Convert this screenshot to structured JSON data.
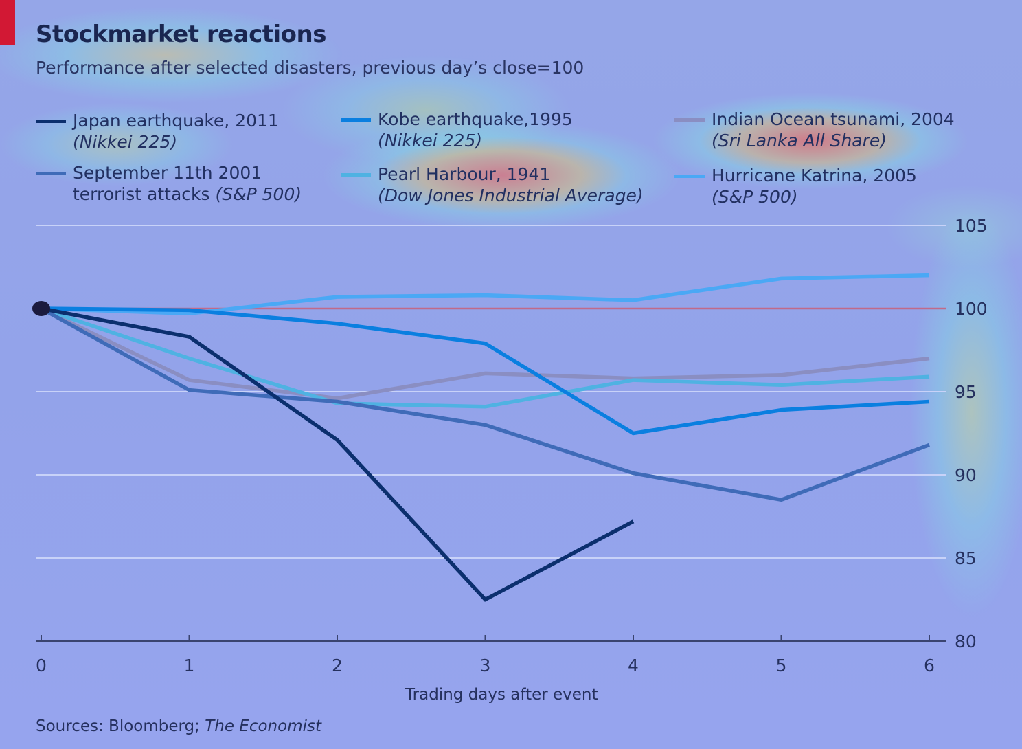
{
  "chart_data": {
    "type": "line",
    "title": "Stockmarket reactions",
    "subtitle": "Performance after selected disasters, previous day’s close=100",
    "xlabel": "Trading days after event",
    "ylabel": "",
    "x": [
      0,
      1,
      2,
      3,
      4,
      5,
      6
    ],
    "xlim": [
      0,
      6
    ],
    "ylim": [
      80,
      105
    ],
    "yticks": [
      80,
      85,
      90,
      95,
      100,
      105
    ],
    "baseline": 100,
    "grid": true,
    "y_axis_side": "right",
    "legend_placement": "top",
    "series": [
      {
        "name": "Japan earthquake, 2011",
        "index": "(Nikkei 225)",
        "color": "#0b2f6e",
        "values": [
          100,
          98.3,
          92.1,
          82.5,
          87.2,
          null,
          null
        ]
      },
      {
        "name": "Kobe earthquake,1995",
        "index": "(Nikkei 225)",
        "color": "#0a7fe0",
        "values": [
          100,
          99.9,
          99.1,
          97.9,
          92.5,
          93.9,
          94.4
        ]
      },
      {
        "name": "Indian Ocean tsunami, 2004",
        "index": "(Sri Lanka All Share)",
        "color": "#8a8ec2",
        "values": [
          100,
          95.7,
          94.6,
          96.1,
          95.8,
          96.0,
          97.0
        ]
      },
      {
        "name": "September 11th 2001",
        "name_line2": "terrorist attacks",
        "index": "(S&P 500)",
        "color": "#3f6bb8",
        "values": [
          100,
          95.1,
          94.4,
          93.0,
          90.1,
          88.5,
          91.8
        ]
      },
      {
        "name": "Pearl Harbour, 1941",
        "index": "(Dow Jones Industrial Average)",
        "color": "#4fb2e2",
        "values": [
          100,
          97.0,
          94.3,
          94.1,
          95.7,
          95.4,
          95.9
        ]
      },
      {
        "name": "Hurricane Katrina, 2005",
        "index": "(S&P 500)",
        "color": "#4aa8f5",
        "values": [
          100,
          99.7,
          100.7,
          100.8,
          100.5,
          101.8,
          102.0
        ]
      }
    ]
  },
  "footer": {
    "source_prefix": "Sources: Bloomberg; ",
    "source_publication": "The Economist"
  },
  "colors": {
    "baseline": "#c06a8a",
    "gridline": "#c8d2f8",
    "axis": "#3a4470",
    "start_marker": "#1b1a3e",
    "brand_tab": "#d21834"
  }
}
